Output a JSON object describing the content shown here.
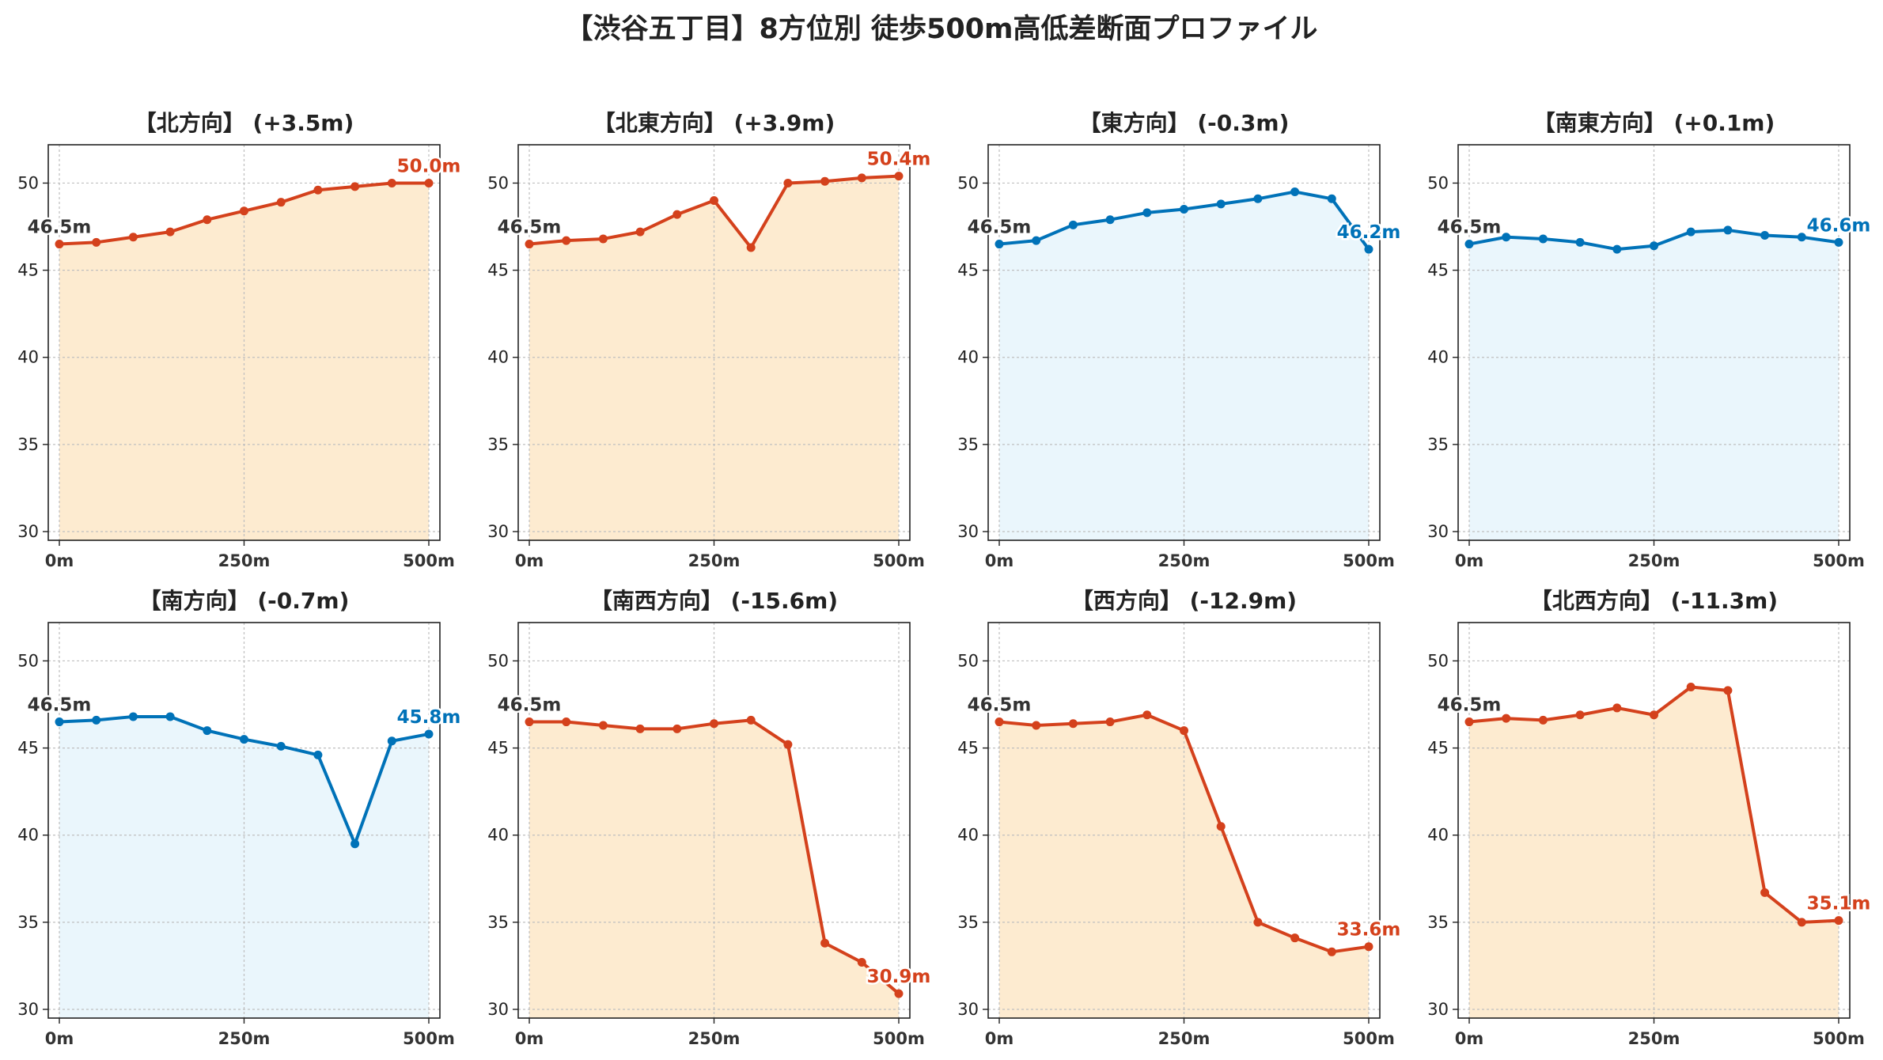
{
  "figure": {
    "title": "【渋谷五丁目】8方位別 徒歩500m高低差断面プロファイル"
  },
  "colors": {
    "up": "#d4411c",
    "up_fill": "#fdebd0",
    "down": "#0072b8",
    "down_fill": "#eaf6fc",
    "start_label": "#333333"
  },
  "chart_data": [
    {
      "type": "area",
      "title": "【北方向】 (+3.5m)",
      "trend": "up",
      "x": [
        0,
        50,
        100,
        150,
        200,
        250,
        300,
        350,
        400,
        450,
        500
      ],
      "y": [
        46.5,
        46.6,
        46.9,
        47.2,
        47.9,
        48.4,
        48.9,
        49.6,
        49.8,
        50.0,
        50.0
      ],
      "xticks": [
        "0m",
        "250m",
        "500m"
      ],
      "yticks": [
        30,
        35,
        40,
        45,
        50
      ],
      "xlim": [
        -15,
        515
      ],
      "ylim": [
        29.5,
        52.2
      ],
      "start_label": "46.5m",
      "end_label": "50.0m",
      "grid": true
    },
    {
      "type": "area",
      "title": "【北東方向】 (+3.9m)",
      "trend": "up",
      "x": [
        0,
        50,
        100,
        150,
        200,
        250,
        300,
        350,
        400,
        450,
        500
      ],
      "y": [
        46.5,
        46.7,
        46.8,
        47.2,
        48.2,
        49.0,
        46.3,
        50.0,
        50.1,
        50.3,
        50.4
      ],
      "xticks": [
        "0m",
        "250m",
        "500m"
      ],
      "yticks": [
        30,
        35,
        40,
        45,
        50
      ],
      "xlim": [
        -15,
        515
      ],
      "ylim": [
        29.5,
        52.2
      ],
      "start_label": "46.5m",
      "end_label": "50.4m",
      "grid": true
    },
    {
      "type": "area",
      "title": "【東方向】 (-0.3m)",
      "trend": "down",
      "x": [
        0,
        50,
        100,
        150,
        200,
        250,
        300,
        350,
        400,
        450,
        500
      ],
      "y": [
        46.5,
        46.7,
        47.6,
        47.9,
        48.3,
        48.5,
        48.8,
        49.1,
        49.5,
        49.1,
        46.2
      ],
      "xticks": [
        "0m",
        "250m",
        "500m"
      ],
      "yticks": [
        30,
        35,
        40,
        45,
        50
      ],
      "xlim": [
        -15,
        515
      ],
      "ylim": [
        29.5,
        52.2
      ],
      "start_label": "46.5m",
      "end_label": "46.2m",
      "grid": true
    },
    {
      "type": "area",
      "title": "【南東方向】 (+0.1m)",
      "trend": "down",
      "x": [
        0,
        50,
        100,
        150,
        200,
        250,
        300,
        350,
        400,
        450,
        500
      ],
      "y": [
        46.5,
        46.9,
        46.8,
        46.6,
        46.2,
        46.4,
        47.2,
        47.3,
        47.0,
        46.9,
        46.6
      ],
      "xticks": [
        "0m",
        "250m",
        "500m"
      ],
      "yticks": [
        30,
        35,
        40,
        45,
        50
      ],
      "xlim": [
        -15,
        515
      ],
      "ylim": [
        29.5,
        52.2
      ],
      "start_label": "46.5m",
      "end_label": "46.6m",
      "grid": true
    },
    {
      "type": "area",
      "title": "【南方向】 (-0.7m)",
      "trend": "down",
      "x": [
        0,
        50,
        100,
        150,
        200,
        250,
        300,
        350,
        400,
        450,
        500
      ],
      "y": [
        46.5,
        46.6,
        46.8,
        46.8,
        46.0,
        45.5,
        45.1,
        44.6,
        39.5,
        45.4,
        45.8
      ],
      "xticks": [
        "0m",
        "250m",
        "500m"
      ],
      "yticks": [
        30,
        35,
        40,
        45,
        50
      ],
      "xlim": [
        -15,
        515
      ],
      "ylim": [
        29.5,
        52.2
      ],
      "start_label": "46.5m",
      "end_label": "45.8m",
      "grid": true
    },
    {
      "type": "area",
      "title": "【南西方向】 (-15.6m)",
      "trend": "up",
      "x": [
        0,
        50,
        100,
        150,
        200,
        250,
        300,
        350,
        400,
        450,
        500
      ],
      "y": [
        46.5,
        46.5,
        46.3,
        46.1,
        46.1,
        46.4,
        46.6,
        45.2,
        33.8,
        32.7,
        30.9
      ],
      "xticks": [
        "0m",
        "250m",
        "500m"
      ],
      "yticks": [
        30,
        35,
        40,
        45,
        50
      ],
      "xlim": [
        -15,
        515
      ],
      "ylim": [
        29.5,
        52.2
      ],
      "start_label": "46.5m",
      "end_label": "30.9m",
      "grid": true
    },
    {
      "type": "area",
      "title": "【西方向】 (-12.9m)",
      "trend": "up",
      "x": [
        0,
        50,
        100,
        150,
        200,
        250,
        300,
        350,
        400,
        450,
        500
      ],
      "y": [
        46.5,
        46.3,
        46.4,
        46.5,
        46.9,
        46.0,
        40.5,
        35.0,
        34.1,
        33.3,
        33.6
      ],
      "xticks": [
        "0m",
        "250m",
        "500m"
      ],
      "yticks": [
        30,
        35,
        40,
        45,
        50
      ],
      "xlim": [
        -15,
        515
      ],
      "ylim": [
        29.5,
        52.2
      ],
      "start_label": "46.5m",
      "end_label": "33.6m",
      "grid": true
    },
    {
      "type": "area",
      "title": "【北西方向】 (-11.3m)",
      "trend": "up",
      "x": [
        0,
        50,
        100,
        150,
        200,
        250,
        300,
        350,
        400,
        450,
        500
      ],
      "y": [
        46.5,
        46.7,
        46.6,
        46.9,
        47.3,
        46.9,
        48.5,
        48.3,
        36.7,
        35.0,
        35.1
      ],
      "xticks": [
        "0m",
        "250m",
        "500m"
      ],
      "yticks": [
        30,
        35,
        40,
        45,
        50
      ],
      "xlim": [
        -15,
        515
      ],
      "ylim": [
        29.5,
        52.2
      ],
      "start_label": "46.5m",
      "end_label": "35.1m",
      "grid": true
    }
  ]
}
